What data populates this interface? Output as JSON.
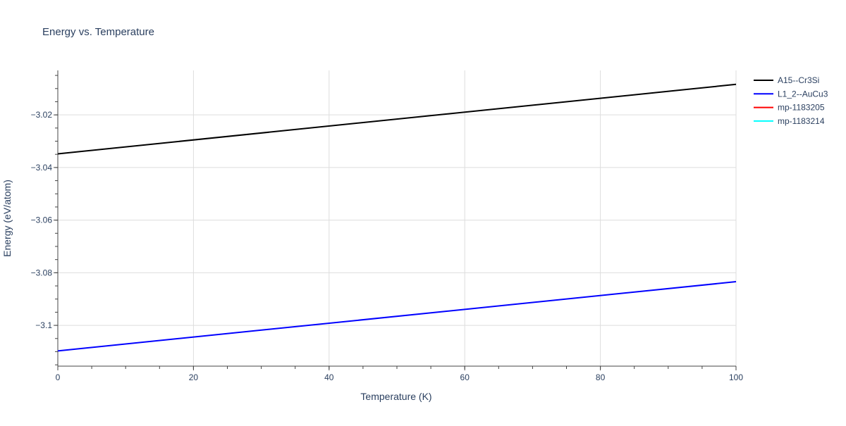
{
  "chart_data": {
    "type": "line",
    "title": "Energy vs. Temperature",
    "xlabel": "Temperature (K)",
    "ylabel": "Energy (eV/atom)",
    "xlim": [
      0,
      100
    ],
    "ylim": [
      -3.1155,
      -3.0031
    ],
    "x_ticks": [
      0,
      20,
      40,
      60,
      80,
      100
    ],
    "x_tick_labels": [
      "0",
      "20",
      "40",
      "60",
      "80",
      "100"
    ],
    "y_ticks": [
      -3.1,
      -3.08,
      -3.06,
      -3.04,
      -3.02
    ],
    "y_tick_labels": [
      "−3.1",
      "−3.08",
      "−3.06",
      "−3.04",
      "−3.02"
    ],
    "x_minor_step": 5,
    "y_minor_step": 0.005,
    "grid": true,
    "legend_position": "right",
    "series": [
      {
        "name": "A15--Cr3Si",
        "color": "#000000",
        "x": [
          0,
          100
        ],
        "y": [
          -3.0348,
          -3.0084
        ]
      },
      {
        "name": "L1_2--AuCu3",
        "color": "#0000ff",
        "x": [
          0,
          100
        ],
        "y": [
          -3.1097,
          -3.0834
        ]
      },
      {
        "name": "mp-1183205",
        "color": "#ff0000",
        "x": [],
        "y": []
      },
      {
        "name": "mp-1183214",
        "color": "#00ffff",
        "x": [],
        "y": []
      }
    ]
  }
}
